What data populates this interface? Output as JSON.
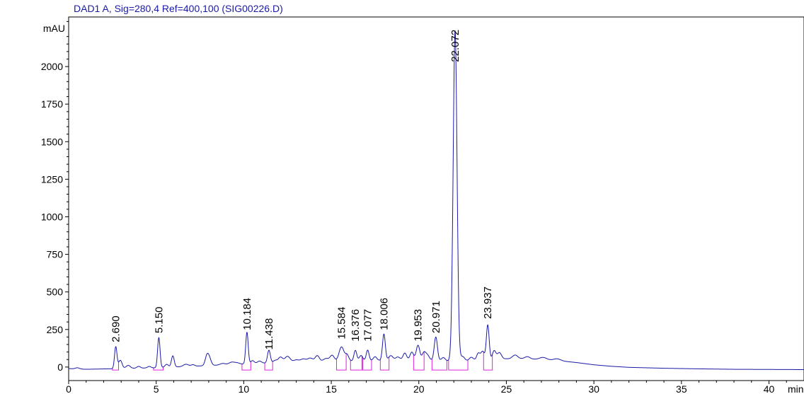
{
  "chart_data": {
    "type": "line",
    "title": "DAD1 A, Sig=280,4 Ref=400,100 (SIG00226.D)",
    "ylabel": "mAU",
    "xlabel": "min",
    "xlim": [
      0,
      42
    ],
    "ylim": [
      -90,
      2330
    ],
    "x_ticks": [
      0,
      5,
      10,
      15,
      20,
      25,
      30,
      35,
      40
    ],
    "y_ticks": [
      0,
      250,
      500,
      750,
      1000,
      1250,
      1500,
      1750,
      2000
    ],
    "series": [
      {
        "color": "#1a1aa8",
        "baseline": [
          [
            0,
            -10
          ],
          [
            0.3,
            -12
          ],
          [
            1,
            -15
          ],
          [
            3,
            -10
          ],
          [
            5,
            -5
          ],
          [
            8,
            10
          ],
          [
            10,
            20
          ],
          [
            12,
            30
          ],
          [
            14,
            35
          ],
          [
            16,
            40
          ],
          [
            18,
            45
          ],
          [
            20,
            50
          ],
          [
            21,
            45
          ],
          [
            22,
            40
          ],
          [
            23,
            40
          ],
          [
            24,
            45
          ],
          [
            25,
            55
          ],
          [
            26,
            55
          ],
          [
            27,
            50
          ],
          [
            28,
            42
          ],
          [
            29,
            30
          ],
          [
            30,
            15
          ],
          [
            31,
            5
          ],
          [
            32,
            -2
          ],
          [
            34,
            -8
          ],
          [
            36,
            -12
          ],
          [
            38,
            -15
          ],
          [
            40,
            -16
          ],
          [
            42,
            -17
          ]
        ],
        "peaks": [
          [
            0.5,
            8,
            0.12
          ],
          [
            2.69,
            145,
            0.07
          ],
          [
            2.95,
            55,
            0.1
          ],
          [
            3.4,
            20,
            0.12
          ],
          [
            4.0,
            12,
            0.1
          ],
          [
            4.6,
            10,
            0.1
          ],
          [
            5.15,
            200,
            0.07
          ],
          [
            5.6,
            20,
            0.1
          ],
          [
            5.95,
            75,
            0.08
          ],
          [
            6.7,
            15,
            0.15
          ],
          [
            7.1,
            10,
            0.1
          ],
          [
            7.9,
            65,
            0.1
          ],
          [
            8.05,
            40,
            0.1
          ],
          [
            8.8,
            10,
            0.15
          ],
          [
            9.3,
            15,
            0.15
          ],
          [
            9.6,
            10,
            0.15
          ],
          [
            10.184,
            210,
            0.07
          ],
          [
            10.5,
            20,
            0.1
          ],
          [
            10.9,
            15,
            0.12
          ],
          [
            11.438,
            85,
            0.08
          ],
          [
            11.8,
            15,
            0.12
          ],
          [
            12.1,
            35,
            0.12
          ],
          [
            12.5,
            40,
            0.15
          ],
          [
            13.0,
            15,
            0.15
          ],
          [
            13.4,
            20,
            0.15
          ],
          [
            13.8,
            25,
            0.15
          ],
          [
            14.2,
            40,
            0.12
          ],
          [
            14.7,
            20,
            0.15
          ],
          [
            15.05,
            40,
            0.12
          ],
          [
            15.584,
            95,
            0.14
          ],
          [
            15.9,
            40,
            0.1
          ],
          [
            16.376,
            70,
            0.08
          ],
          [
            16.7,
            35,
            0.1
          ],
          [
            17.077,
            70,
            0.08
          ],
          [
            17.5,
            25,
            0.1
          ],
          [
            18.006,
            175,
            0.08
          ],
          [
            18.4,
            30,
            0.12
          ],
          [
            18.8,
            20,
            0.12
          ],
          [
            19.2,
            45,
            0.1
          ],
          [
            19.6,
            50,
            0.1
          ],
          [
            19.953,
            95,
            0.1
          ],
          [
            20.3,
            50,
            0.1
          ],
          [
            20.5,
            30,
            0.1
          ],
          [
            20.971,
            155,
            0.09
          ],
          [
            21.4,
            20,
            0.1
          ],
          [
            22.072,
            2200,
            0.11
          ],
          [
            22.5,
            30,
            0.12
          ],
          [
            23.0,
            25,
            0.12
          ],
          [
            23.4,
            50,
            0.1
          ],
          [
            23.65,
            60,
            0.1
          ],
          [
            23.937,
            235,
            0.08
          ],
          [
            24.3,
            60,
            0.1
          ],
          [
            24.6,
            45,
            0.12
          ],
          [
            25.5,
            25,
            0.15
          ],
          [
            26.2,
            15,
            0.15
          ],
          [
            27.1,
            15,
            0.2
          ],
          [
            27.9,
            12,
            0.2
          ]
        ]
      }
    ],
    "peak_labels": [
      {
        "x": 2.69,
        "label": "2.690",
        "top": 165
      },
      {
        "x": 5.15,
        "label": "5.150",
        "top": 225
      },
      {
        "x": 10.184,
        "label": "10.184",
        "top": 245
      },
      {
        "x": 11.438,
        "label": "11.438",
        "top": 115
      },
      {
        "x": 15.584,
        "label": "15.584",
        "top": 185
      },
      {
        "x": 16.376,
        "label": "16.376",
        "top": 170
      },
      {
        "x": 17.077,
        "label": "17.077",
        "top": 170
      },
      {
        "x": 18.006,
        "label": "18.006",
        "top": 245
      },
      {
        "x": 19.953,
        "label": "19.953",
        "top": 170
      },
      {
        "x": 20.971,
        "label": "20.971",
        "top": 225
      },
      {
        "x": 22.072,
        "label": "22.072",
        "top": 2030
      },
      {
        "x": 23.937,
        "label": "23.937",
        "top": 320
      }
    ],
    "integration_marks": [
      {
        "start": 2.5,
        "end": 2.85,
        "color": "#e020e0"
      },
      {
        "start": 4.85,
        "end": 5.4,
        "color": "#e020e0"
      },
      {
        "start": 9.9,
        "end": 10.4,
        "color": "#e020e0"
      },
      {
        "start": 11.2,
        "end": 11.65,
        "color": "#e020e0"
      },
      {
        "start": 15.3,
        "end": 15.85,
        "color": "#e020e0"
      },
      {
        "start": 16.1,
        "end": 16.75,
        "color": "#e020e0"
      },
      {
        "start": 16.8,
        "end": 17.3,
        "color": "#e020e0"
      },
      {
        "start": 17.8,
        "end": 18.3,
        "color": "#e020e0"
      },
      {
        "start": 19.7,
        "end": 20.3,
        "color": "#e020e0"
      },
      {
        "start": 20.75,
        "end": 21.6,
        "color": "#e020e0"
      },
      {
        "start": 21.7,
        "end": 22.8,
        "color": "#e020e0"
      },
      {
        "start": 23.7,
        "end": 24.2,
        "color": "#e020e0"
      }
    ],
    "grid": false,
    "legend": "none"
  }
}
